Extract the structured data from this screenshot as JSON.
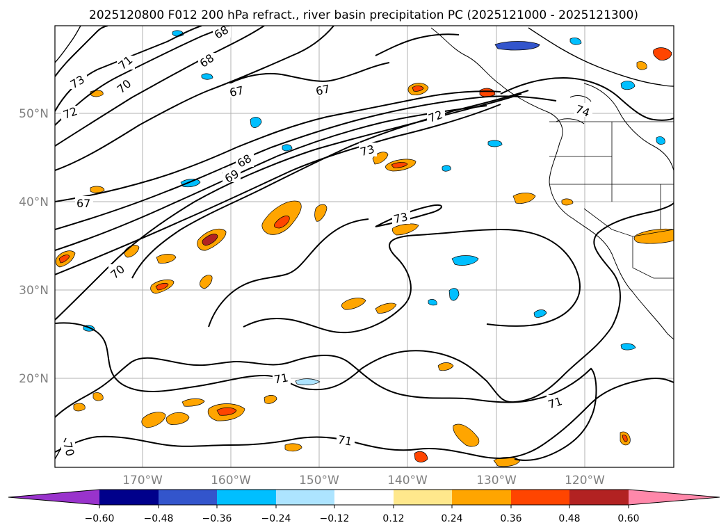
{
  "title": "2025120800 F012 200 hPa refract., river basin precipitation PC (2025121000 - 2025121300)",
  "colors": {
    "neg_extend": "#9933cc",
    "neg_060": "#00008b",
    "neg_048": "#3355cc",
    "neg_036": "#00bfff",
    "neg_024": "#ade4ff",
    "neutral": "#ffffff",
    "pos_012": "#ffe88c",
    "pos_024": "#ffa500",
    "pos_036": "#ff4500",
    "pos_048": "#b22222",
    "pos_extend": "#ff88aa"
  },
  "map": {
    "latitude_labels": [
      "50°N",
      "40°N",
      "30°N",
      "20°N"
    ],
    "longitude_labels": [
      "170°W",
      "160°W",
      "150°W",
      "140°W",
      "130°W",
      "120°W"
    ],
    "contour_labels": [
      "73",
      "72",
      "71",
      "70",
      "69",
      "68",
      "67",
      "67",
      "67",
      "72",
      "73",
      "73",
      "70",
      "71",
      "71",
      "71",
      "74",
      "70",
      "68",
      "68"
    ]
  },
  "colorbar": {
    "tick_labels": [
      "−0.60",
      "−0.48",
      "−0.36",
      "−0.24",
      "−0.12",
      "0.12",
      "0.24",
      "0.36",
      "0.48",
      "0.60"
    ]
  }
}
